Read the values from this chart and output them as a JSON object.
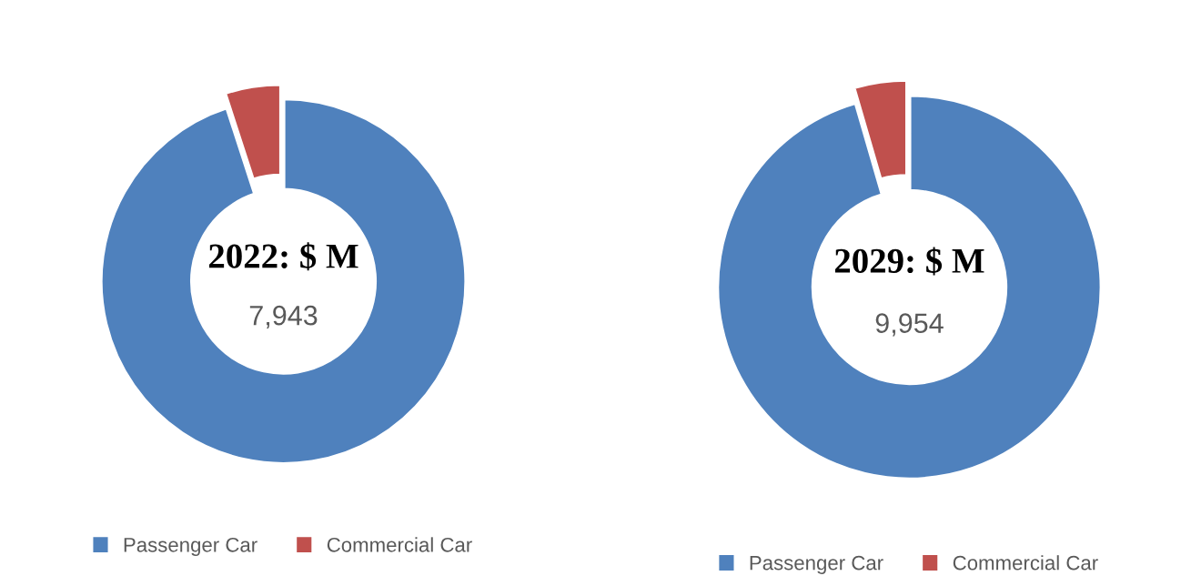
{
  "chart_data": [
    {
      "type": "donut",
      "title": "2022: $ M",
      "annotations": [
        "7,943"
      ],
      "categories": [
        "Passenger Car",
        "Commercial Car"
      ],
      "values": [
        95,
        5
      ],
      "colors": [
        "#4f81bd",
        "#c0504d"
      ],
      "legend": "bottom"
    },
    {
      "type": "donut",
      "title": "2029: $ M",
      "annotations": [
        "9,954"
      ],
      "categories": [
        "Passenger Car",
        "Commercial Car"
      ],
      "values": [
        95.5,
        4.5
      ],
      "colors": [
        "#4f81bd",
        "#c0504d"
      ],
      "legend": "bottom"
    }
  ]
}
